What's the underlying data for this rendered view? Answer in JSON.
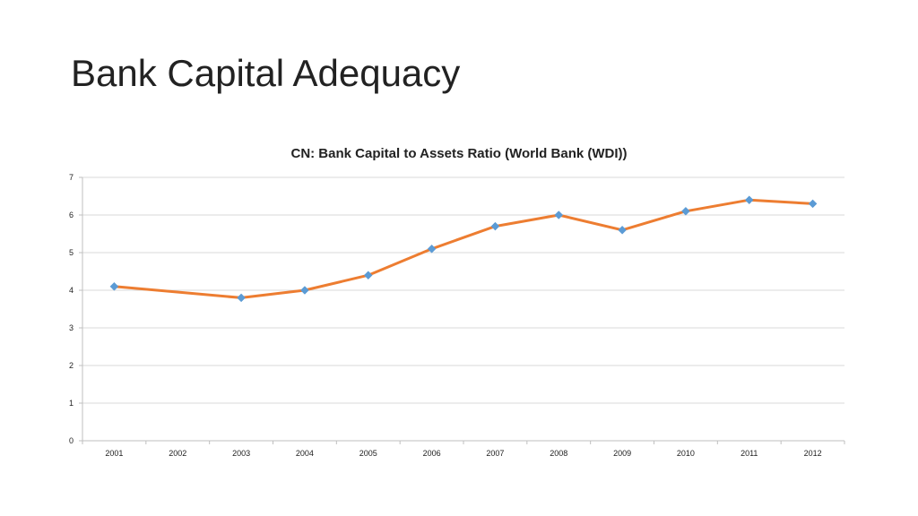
{
  "slide": {
    "title": "Bank Capital Adequacy"
  },
  "chart_data": {
    "type": "line",
    "title": "CN: Bank Capital to Assets Ratio (World Bank (WDI))",
    "xlabel": "",
    "ylabel": "",
    "categories": [
      "2001",
      "2002",
      "2003",
      "2004",
      "2005",
      "2006",
      "2007",
      "2008",
      "2009",
      "2010",
      "2011",
      "2012"
    ],
    "series": [
      {
        "values": [
          4.1,
          null,
          3.8,
          4.0,
          4.4,
          5.1,
          5.7,
          6.0,
          5.6,
          6.1,
          6.4,
          6.3
        ],
        "line_color": "#ED7D31",
        "marker_color": "#5B9BD5",
        "marker": "diamond"
      }
    ],
    "ylim": [
      0,
      7
    ],
    "yticks": [
      0,
      1,
      2,
      3,
      4,
      5,
      6,
      7
    ],
    "grid": true,
    "legend": "none"
  }
}
